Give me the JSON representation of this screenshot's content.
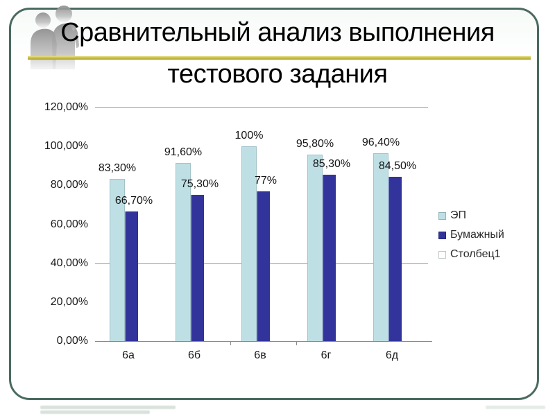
{
  "slide": {
    "title_line1": "Сравнительный анализ выполнения",
    "title_line2": "тестового задания"
  },
  "colors": {
    "slide_border": "#4a6b60",
    "title_accent_line": "#cdc04a",
    "gridline": "#999999",
    "axis": "#8a8a8a"
  },
  "chart_data": {
    "type": "bar",
    "title": "",
    "xlabel": "",
    "ylabel": "",
    "categories": [
      "6а",
      "6б",
      "6в",
      "6г",
      "6д"
    ],
    "series": [
      {
        "name": "ЭП",
        "color": "#bedfe3",
        "swatch_border": "#8fb2ba",
        "values": [
          83.3,
          91.6,
          100,
          95.8,
          96.4
        ],
        "labels": [
          "83,30%",
          "91,60%",
          "100%",
          "95,80%",
          "96,40%"
        ]
      },
      {
        "name": "Бумажный",
        "color": "#32339b",
        "swatch_border": "#24257d",
        "values": [
          66.7,
          75.3,
          77,
          85.3,
          84.5
        ],
        "labels": [
          "66,70%",
          "75,30%",
          "77%",
          "85,30%",
          "84,50%"
        ]
      },
      {
        "name": "Столбец1",
        "color": "#ffffff",
        "swatch_border": "#bcc6bf",
        "values": [],
        "labels": []
      }
    ],
    "ylim": [
      0,
      120
    ],
    "ytick_step": 20,
    "ytick_labels": [
      "0,00%",
      "20,00%",
      "40,00%",
      "60,00%",
      "80,00%",
      "100,00%",
      "120,00%"
    ],
    "gridlines_at": [
      40,
      120
    ],
    "grid": "partial",
    "legend_position": "right"
  }
}
